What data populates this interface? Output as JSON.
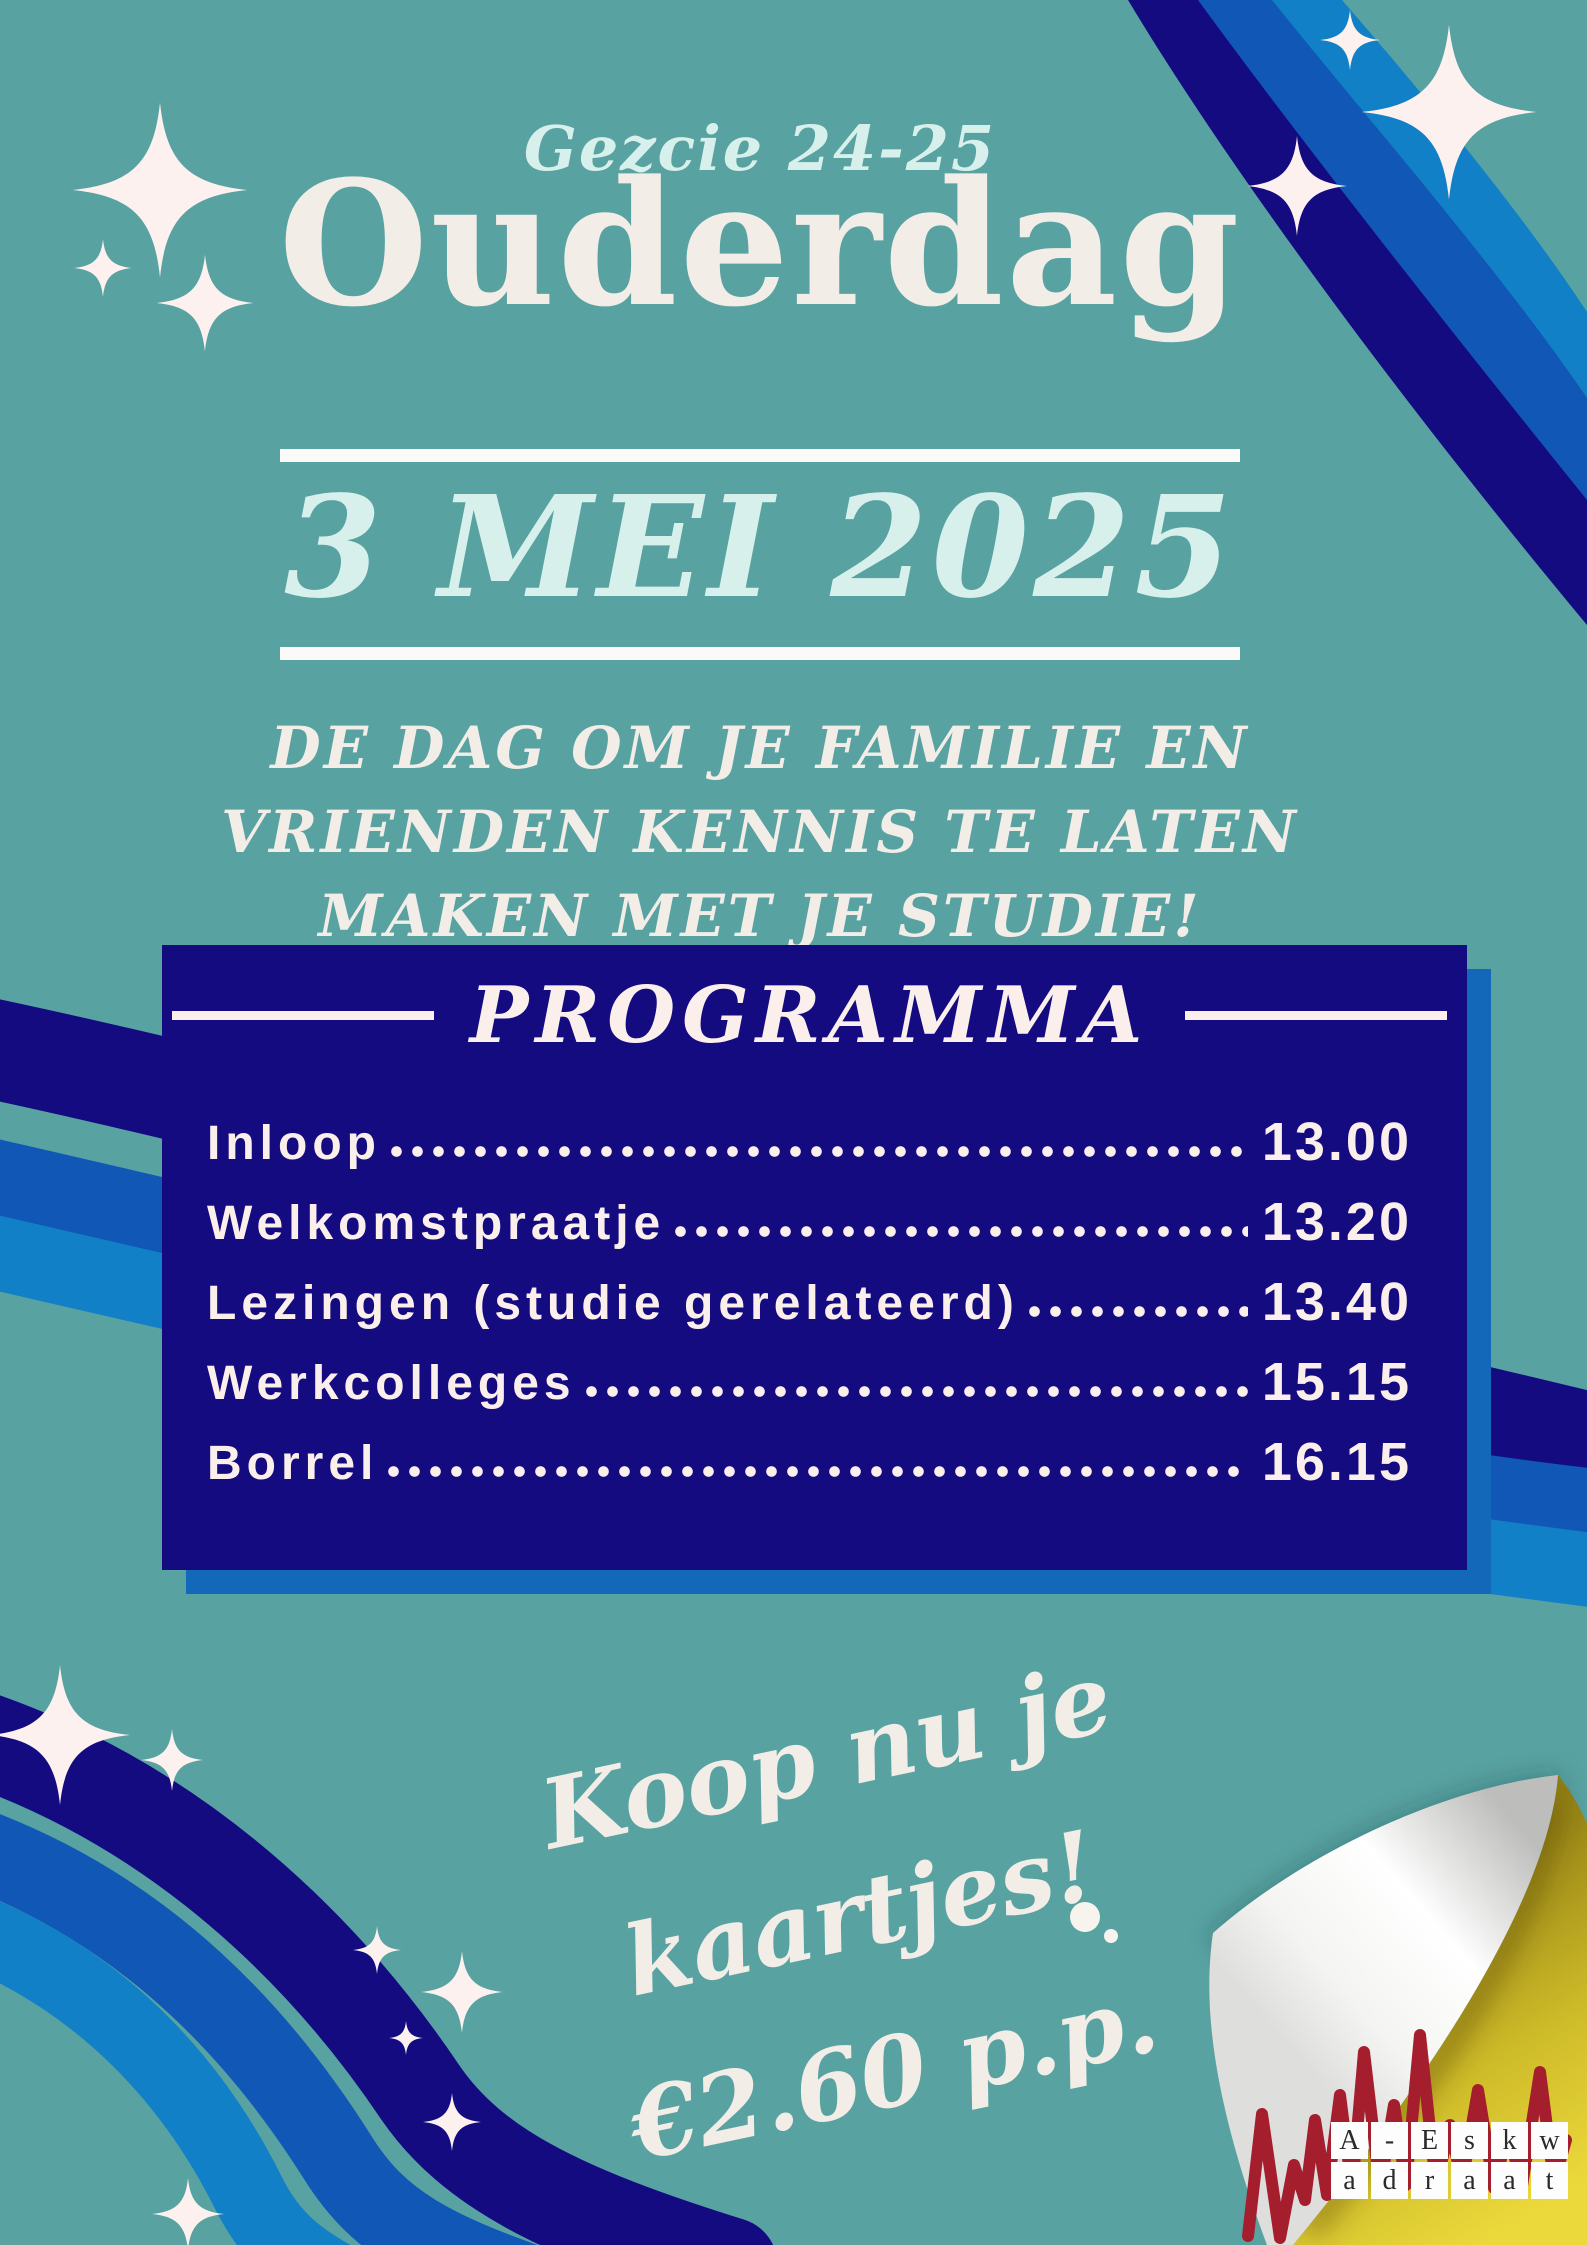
{
  "poster": {
    "eyebrow": "Gezcie 24-25",
    "title": "Ouderdag",
    "date": "3 MEI 2025",
    "tagline_lines": [
      "DE DAG OM JE FAMILIE EN",
      "VRIENDEN KENNIS TE LATEN",
      "MAKEN MET JE STUDIE!"
    ]
  },
  "programma": {
    "heading": "PROGRAMMA",
    "items": [
      {
        "label": "Inloop",
        "time": "13.00"
      },
      {
        "label": "Welkomstpraatje",
        "time": "13.20"
      },
      {
        "label": "Lezingen (studie gerelateerd)",
        "time": "13.40"
      },
      {
        "label": "Werkcolleges",
        "time": "15.15"
      },
      {
        "label": "Borrel",
        "time": "16.15"
      }
    ]
  },
  "tickets": {
    "lines": [
      "Koop nu je",
      "kaartjes!",
      "€2.60 p.p."
    ]
  },
  "logo": {
    "name": "A-Eskwadraat",
    "tile_rows": [
      [
        "A",
        "-",
        "E",
        "s",
        "k",
        "w"
      ],
      [
        "a",
        "d",
        "r",
        "a",
        "a",
        "t"
      ]
    ]
  },
  "colors": {
    "background_teal": "#58A2A2",
    "navy": "#140B80",
    "blue_medium": "#1157B6",
    "blue_light": "#1280C6",
    "box_shadow_blue": "#1368B9",
    "cream": "#F3EDE7",
    "mint": "#D7F0EB",
    "program_text": "#FBEFEC",
    "sparkle": "#FCF1EE",
    "corner_yellow": "#E8D636",
    "curl_white": "#FFFFFF",
    "logo_red": "#A51E2D"
  }
}
